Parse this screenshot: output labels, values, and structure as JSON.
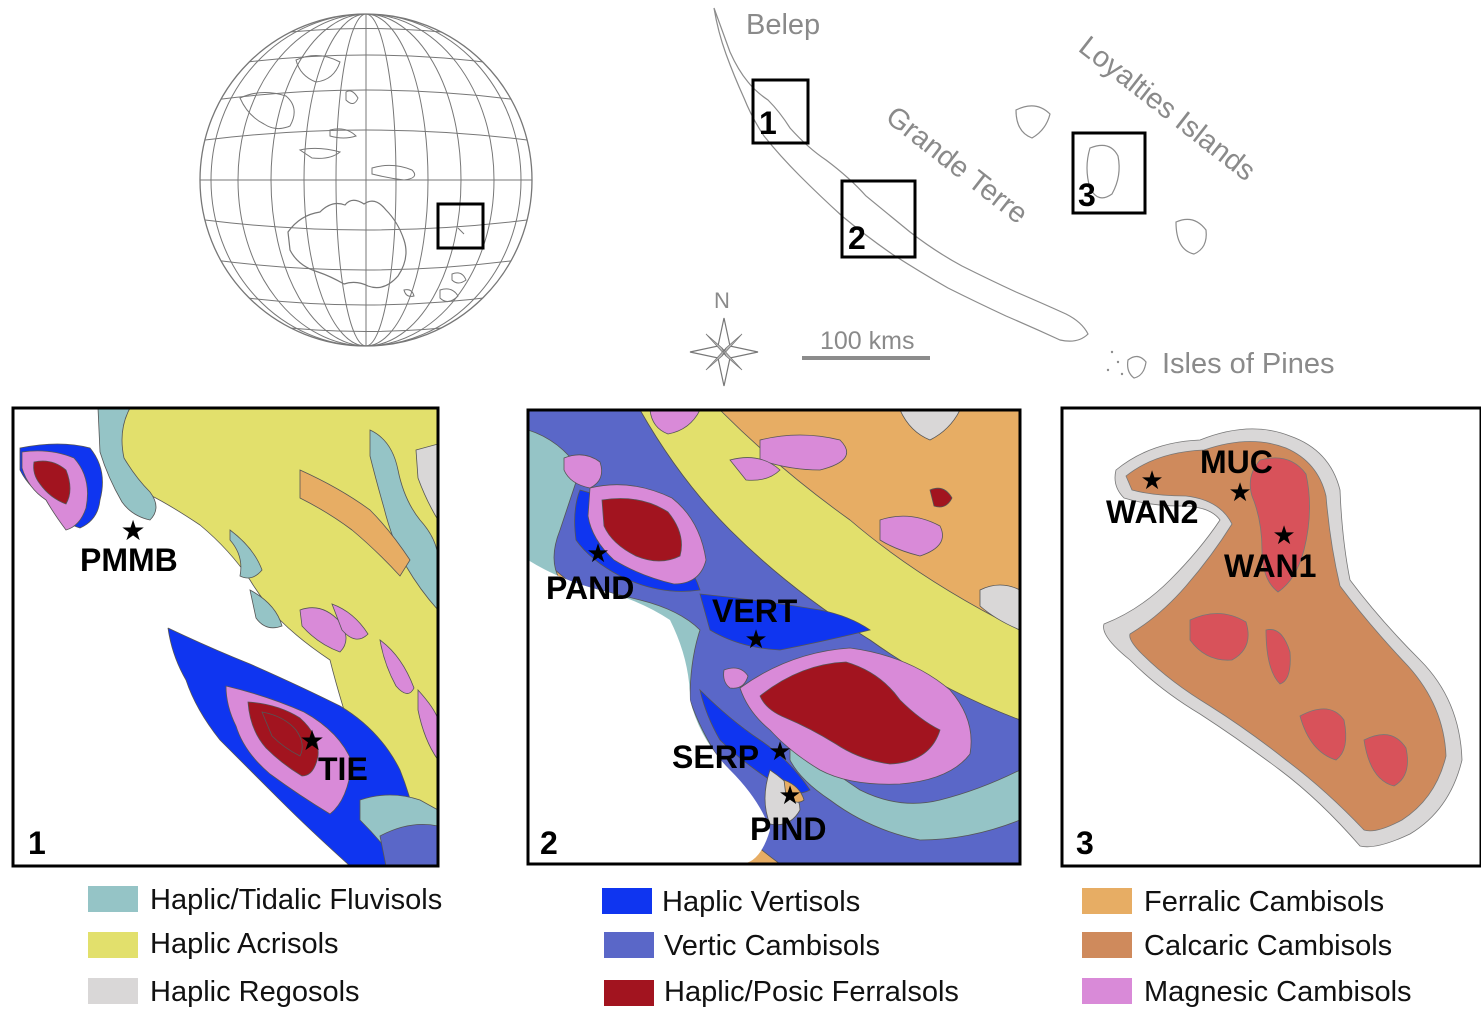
{
  "regions": {
    "belep": "Belep",
    "loyalties": "Loyalties Islands",
    "grande_terre": "Grande Terre",
    "isles_of_pines": "Isles of Pines"
  },
  "locator_boxes": [
    "1",
    "2",
    "3"
  ],
  "compass": {
    "north": "N"
  },
  "scale": {
    "label": "100 kms"
  },
  "panels": [
    {
      "number": "1",
      "sites": [
        "PMMB",
        "TIE"
      ]
    },
    {
      "number": "2",
      "sites": [
        "PAND",
        "VERT",
        "SERP",
        "PIND"
      ]
    },
    {
      "number": "3",
      "sites": [
        "MUC",
        "WAN2",
        "WAN1"
      ]
    }
  ],
  "legend": [
    {
      "label": "Haplic/Tidalic Fluvisols",
      "color": "#95c4c6"
    },
    {
      "label": "Haplic Acrisols",
      "color": "#e2e06c"
    },
    {
      "label": "Haplic Regosols",
      "color": "#d9d7d7"
    },
    {
      "label": "Haplic Vertisols",
      "color": "#0f35f0"
    },
    {
      "label": "Vertic Cambisols",
      "color": "#5a67c8"
    },
    {
      "label": "Haplic/Posic Ferralsols",
      "color": "#a2141f"
    },
    {
      "label": "Ferralic Cambisols",
      "color": "#e7ad64"
    },
    {
      "label": "Calcaric Cambisols",
      "color": "#cf8a5c"
    },
    {
      "label": "Magnesic Cambisols",
      "color": "#d98ad8"
    }
  ],
  "colors": {
    "subclass_ferralsol_panel3": "#d8525a"
  }
}
